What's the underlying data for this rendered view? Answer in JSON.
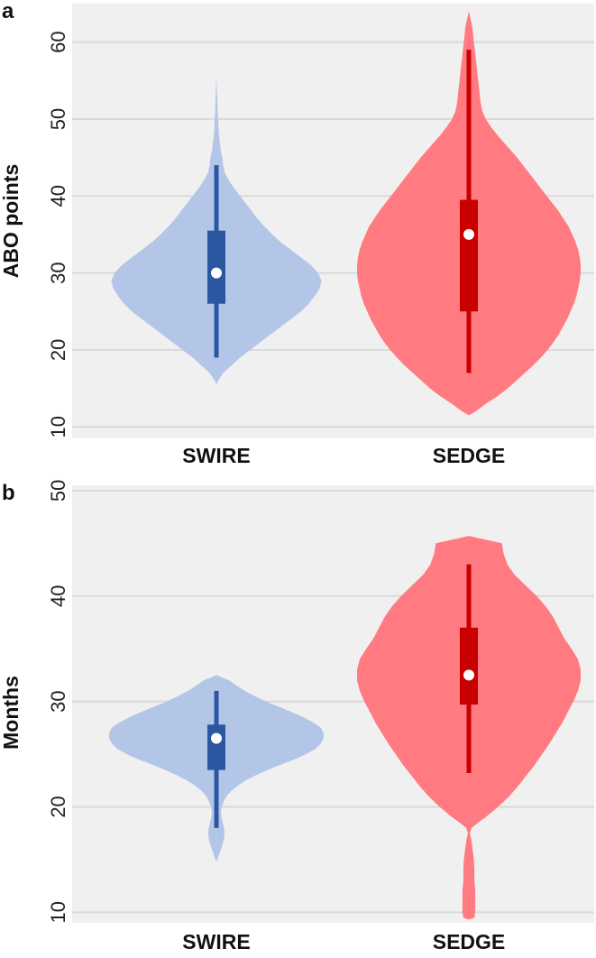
{
  "chart_data": [
    {
      "panel": "a",
      "type": "violin",
      "title": "",
      "xlabel": "",
      "ylabel": "ABO points",
      "ylim": [
        8.5,
        65
      ],
      "yticks": [
        10,
        20,
        30,
        40,
        50,
        60
      ],
      "grid": true,
      "categories": [
        "SWIRE",
        "SEDGE"
      ],
      "series": [
        {
          "category": "SWIRE",
          "color": "#b3c6e8",
          "box_color": "#2a579f",
          "median": 30,
          "q1": 26,
          "q3": 35.5,
          "whisker_low": 19,
          "whisker_high": 44,
          "density": [
            [
              15.5,
              0
            ],
            [
              16,
              2
            ],
            [
              17,
              8
            ],
            [
              18,
              18
            ],
            [
              19,
              28
            ],
            [
              20,
              40
            ],
            [
              21,
              52
            ],
            [
              22,
              64
            ],
            [
              23,
              76
            ],
            [
              24,
              88
            ],
            [
              25,
              100
            ],
            [
              26,
              109
            ],
            [
              27,
              116
            ],
            [
              28,
              122
            ],
            [
              29,
              124
            ],
            [
              30,
              120
            ],
            [
              31,
              112
            ],
            [
              32,
              100
            ],
            [
              33,
              88
            ],
            [
              34,
              76
            ],
            [
              35,
              66
            ],
            [
              36,
              57
            ],
            [
              37,
              49
            ],
            [
              38,
              42
            ],
            [
              39,
              35
            ],
            [
              40,
              28
            ],
            [
              41,
              21
            ],
            [
              42,
              15
            ],
            [
              43,
              10
            ],
            [
              44,
              8
            ],
            [
              45,
              7
            ],
            [
              46,
              5
            ],
            [
              47,
              4
            ],
            [
              48,
              3
            ],
            [
              49,
              2.5
            ],
            [
              50,
              2
            ],
            [
              51,
              1.5
            ],
            [
              52,
              1.2
            ],
            [
              53,
              0.8
            ],
            [
              54,
              0.5
            ],
            [
              55.5,
              0
            ]
          ]
        },
        {
          "category": "SEDGE",
          "color": "#ff7b81",
          "box_color": "#c80000",
          "median": 35,
          "q1": 25,
          "q3": 39.5,
          "whisker_low": 17,
          "whisker_high": 59,
          "density": [
            [
              11.5,
              0
            ],
            [
              12,
              8
            ],
            [
              13,
              20
            ],
            [
              14,
              34
            ],
            [
              15,
              46
            ],
            [
              16,
              56
            ],
            [
              17,
              66
            ],
            [
              18,
              76
            ],
            [
              19,
              85
            ],
            [
              20,
              93
            ],
            [
              21,
              100
            ],
            [
              22,
              106
            ],
            [
              23,
              111
            ],
            [
              24,
              116
            ],
            [
              25,
              120
            ],
            [
              26,
              124
            ],
            [
              27,
              127
            ],
            [
              28,
              129
            ],
            [
              29,
              131
            ],
            [
              30,
              132
            ],
            [
              31,
              132
            ],
            [
              32,
              131
            ],
            [
              33,
              129
            ],
            [
              34,
              126
            ],
            [
              35,
              122
            ],
            [
              36,
              118
            ],
            [
              37,
              112
            ],
            [
              38,
              106
            ],
            [
              39,
              99
            ],
            [
              40,
              92
            ],
            [
              41,
              85
            ],
            [
              42,
              78
            ],
            [
              43,
              71
            ],
            [
              44,
              64
            ],
            [
              45,
              57
            ],
            [
              46,
              49
            ],
            [
              47,
              41
            ],
            [
              48,
              33
            ],
            [
              49,
              26
            ],
            [
              50,
              20
            ],
            [
              51,
              16
            ],
            [
              52,
              14
            ],
            [
              53,
              13
            ],
            [
              54,
              12
            ],
            [
              55,
              11
            ],
            [
              56,
              10
            ],
            [
              57,
              9
            ],
            [
              58,
              8
            ],
            [
              59,
              7
            ],
            [
              60,
              6
            ],
            [
              61,
              5
            ],
            [
              62,
              4
            ],
            [
              63,
              2
            ],
            [
              64,
              0
            ]
          ]
        }
      ]
    },
    {
      "panel": "b",
      "type": "violin",
      "title": "",
      "xlabel": "",
      "ylabel": "Months",
      "ylim": [
        9,
        50.5
      ],
      "yticks": [
        10,
        20,
        30,
        40,
        50
      ],
      "grid": true,
      "categories": [
        "SWIRE",
        "SEDGE"
      ],
      "series": [
        {
          "category": "SWIRE",
          "color": "#b3c6e8",
          "box_color": "#2a579f",
          "median": 26.5,
          "q1": 23.5,
          "q3": 27.8,
          "whisker_low": 18,
          "whisker_high": 31,
          "density": [
            [
              14.8,
              0
            ],
            [
              15,
              1
            ],
            [
              15.5,
              3
            ],
            [
              16,
              5
            ],
            [
              16.5,
              7
            ],
            [
              17,
              8.5
            ],
            [
              17.5,
              9
            ],
            [
              18,
              8.5
            ],
            [
              18.5,
              7
            ],
            [
              19,
              5.5
            ],
            [
              19.5,
              5
            ],
            [
              20,
              6
            ],
            [
              20.5,
              8
            ],
            [
              21,
              11
            ],
            [
              21.5,
              16
            ],
            [
              22,
              23
            ],
            [
              22.5,
              32
            ],
            [
              23,
              43
            ],
            [
              23.5,
              56
            ],
            [
              24,
              70
            ],
            [
              24.5,
              85
            ],
            [
              25,
              98
            ],
            [
              25.5,
              108
            ],
            [
              26,
              114
            ],
            [
              26.5,
              117
            ],
            [
              27,
              117
            ],
            [
              27.5,
              114
            ],
            [
              28,
              106
            ],
            [
              28.5,
              95
            ],
            [
              29,
              82
            ],
            [
              29.5,
              68
            ],
            [
              30,
              54
            ],
            [
              30.5,
              42
            ],
            [
              31,
              31
            ],
            [
              31.5,
              22
            ],
            [
              32,
              14
            ],
            [
              32.5,
              0
            ]
          ]
        },
        {
          "category": "SEDGE",
          "color": "#ff7b81",
          "box_color": "#c80000",
          "median": 32.5,
          "q1": 29.7,
          "q3": 37,
          "whisker_low": 23.2,
          "whisker_high": 43,
          "density": [
            [
              9.3,
              0
            ],
            [
              9.5,
              6
            ],
            [
              10,
              7
            ],
            [
              11,
              7
            ],
            [
              12,
              7
            ],
            [
              13,
              6
            ],
            [
              14,
              6
            ],
            [
              15,
              5.5
            ],
            [
              16,
              4
            ],
            [
              17,
              2.5
            ],
            [
              17.5,
              1
            ],
            [
              18,
              3
            ],
            [
              18.5,
              10
            ],
            [
              19,
              18
            ],
            [
              20,
              32
            ],
            [
              21,
              44
            ],
            [
              22,
              54
            ],
            [
              23,
              63
            ],
            [
              24,
              72
            ],
            [
              25,
              80
            ],
            [
              26,
              88
            ],
            [
              27,
              95
            ],
            [
              28,
              102
            ],
            [
              29,
              108
            ],
            [
              30,
              114
            ],
            [
              31,
              119
            ],
            [
              32,
              122
            ],
            [
              33,
              122
            ],
            [
              34,
              119
            ],
            [
              35,
              112
            ],
            [
              36,
              104
            ],
            [
              37,
              98
            ],
            [
              38,
              92
            ],
            [
              39,
              84
            ],
            [
              40,
              74
            ],
            [
              41,
              62
            ],
            [
              42,
              50
            ],
            [
              43,
              42
            ],
            [
              44,
              38
            ],
            [
              45,
              36
            ],
            [
              45.7,
              0
            ]
          ]
        }
      ]
    }
  ],
  "figure": {
    "panel_letters": [
      "a",
      "b"
    ]
  }
}
